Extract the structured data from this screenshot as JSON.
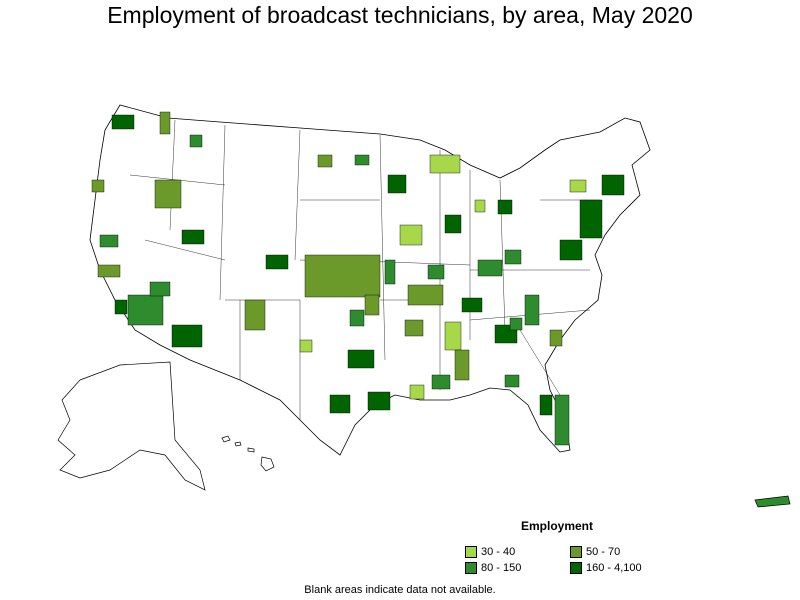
{
  "title": "Employment of broadcast technicians, by area, May 2020",
  "legend": {
    "title": "Employment",
    "items": [
      {
        "label": "30 - 40",
        "color": "#a6d84a"
      },
      {
        "label": "50 - 70",
        "color": "#6b9a2a"
      },
      {
        "label": "80 - 150",
        "color": "#2e8b2e"
      },
      {
        "label": "160 - 4,100",
        "color": "#006400"
      }
    ]
  },
  "note": "Blank areas indicate data not available.",
  "colors": {
    "blank": "#ffffff",
    "border": "#000000"
  }
}
